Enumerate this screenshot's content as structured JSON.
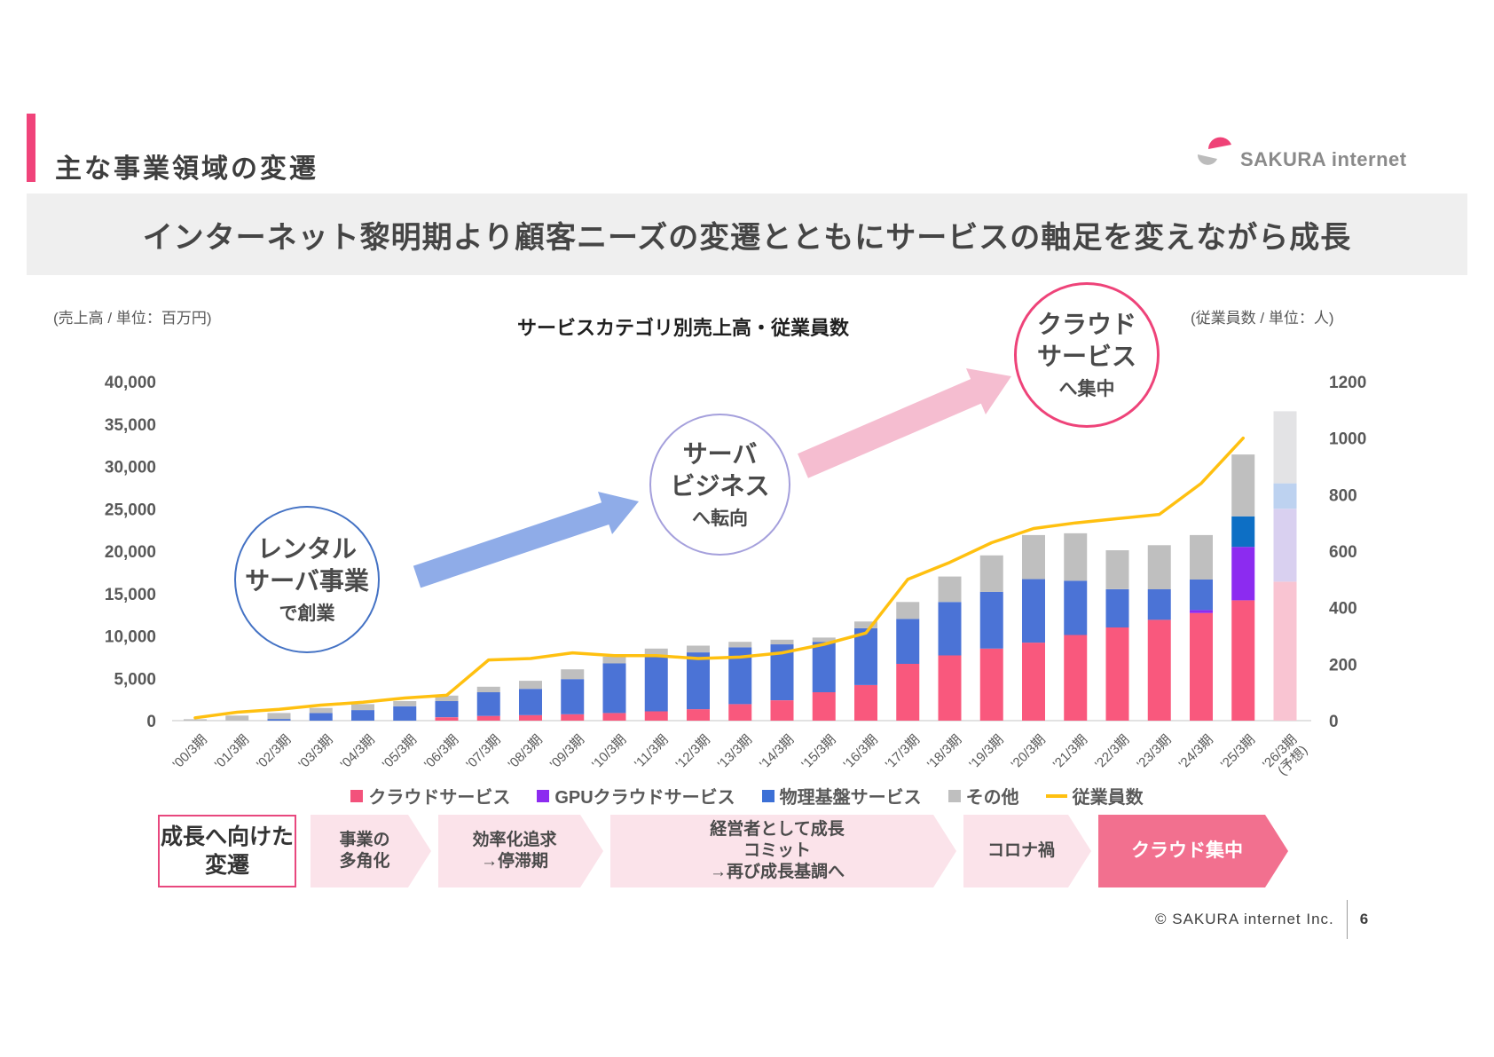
{
  "header": {
    "title": "主な事業領域の変遷"
  },
  "logo": {
    "text": "SAKURA internet"
  },
  "banner": {
    "text": "インターネット黎明期より顧客ニーズの変遷とともにサービスの軸足を変えながら成長"
  },
  "chart_header": {
    "left_unit": "(売上高 / 単位：百万円)",
    "title": "サービスカテゴリ別売上高・従業員数",
    "right_unit": "(従業員数 / 単位：人)"
  },
  "annotations": [
    {
      "main": "レンタル\nサーバ事業",
      "sub": "で創業",
      "border_color": "#4472C4"
    },
    {
      "main": "サーバ\nビジネス",
      "sub": "へ転向",
      "border_color": "#A5A0DC"
    },
    {
      "main": "クラウド\nサービス",
      "sub": "へ集中",
      "border_color": "#EE4379"
    }
  ],
  "legend": {
    "items": [
      {
        "label": "クラウドサービス",
        "color": "#F3527B",
        "type": "square"
      },
      {
        "label": "GPUクラウドサービス",
        "color": "#8C2BF0",
        "type": "square"
      },
      {
        "label": "物理基盤サービス",
        "color": "#3C70D6",
        "type": "square"
      },
      {
        "label": "その他",
        "color": "#BFBFBF",
        "type": "square"
      },
      {
        "label": "従業員数",
        "color": "#FFC010",
        "type": "line"
      }
    ]
  },
  "flow": {
    "title": "成長へ向けた\n変遷",
    "steps": [
      {
        "label": "事業の\n多角化"
      },
      {
        "label": "効率化追求\n→停滞期"
      },
      {
        "label": "経営者として成長\nコミット\n→再び成長基調へ"
      },
      {
        "label": "コロナ禍"
      },
      {
        "label": "クラウド集中"
      }
    ]
  },
  "footer": {
    "copyright": "© SAKURA internet Inc.",
    "page": "6"
  },
  "chart_data": {
    "type": "bar",
    "subtype": "stacked-bar-with-line",
    "title": "サービスカテゴリ別売上高・従業員数",
    "categories": [
      "'00/3期",
      "'01/3期",
      "'02/3期",
      "'03/3期",
      "'04/3期",
      "'05/3期",
      "'06/3期",
      "'07/3期",
      "'08/3期",
      "'09/3期",
      "'10/3期",
      "'11/3期",
      "'12/3期",
      "'13/3期",
      "'14/3期",
      "'15/3期",
      "'16/3期",
      "'17/3期",
      "'18/3期",
      "'19/3期",
      "'20/3期",
      "'21/3期",
      "'22/3期",
      "'23/3期",
      "'24/3期",
      "'25/3期",
      "'26/3期"
    ],
    "forecast_index": 26,
    "forecast_note": "(予想)",
    "y_left": {
      "label": "売上高(百万円)",
      "min": 0,
      "max": 40000,
      "step": 5000
    },
    "y_right": {
      "label": "従業員数(人)",
      "min": 0,
      "max": 1200,
      "step": 200
    },
    "grid": false,
    "legend_position": "bottom",
    "series": [
      {
        "name": "クラウドサービス",
        "color": "#F9587D",
        "forecast_color": "#F9C4D2",
        "values": [
          0,
          0,
          0,
          0,
          0,
          0,
          400,
          550,
          650,
          750,
          900,
          1100,
          1350,
          1950,
          2400,
          3350,
          4200,
          6700,
          7700,
          8500,
          9200,
          10100,
          11000,
          11900,
          12700,
          14200,
          16400
        ]
      },
      {
        "name": "GPUクラウドサービス",
        "color": "#8C2BF0",
        "forecast_color": "#D9D0F0",
        "values": [
          0,
          0,
          0,
          0,
          0,
          0,
          0,
          0,
          0,
          0,
          0,
          0,
          0,
          0,
          0,
          0,
          0,
          0,
          0,
          0,
          0,
          0,
          0,
          0,
          350,
          6300,
          8600
        ]
      },
      {
        "name": "物理基盤サービス",
        "color": "#4B73D6",
        "forecast_color": "#BDD2F0",
        "point_colors": {
          "25": "#0D6FC5"
        },
        "values": [
          0,
          0,
          200,
          900,
          1250,
          1700,
          1900,
          2800,
          3100,
          4150,
          5850,
          6400,
          6700,
          6700,
          6600,
          5950,
          6700,
          5300,
          6300,
          6700,
          7500,
          6400,
          4500,
          3600,
          3600,
          3600,
          3000
        ]
      },
      {
        "name": "その他",
        "color": "#BFBFBF",
        "forecast_color": "#E3E3E5",
        "values": [
          170,
          600,
          700,
          600,
          700,
          600,
          650,
          650,
          950,
          1150,
          800,
          1000,
          800,
          650,
          550,
          500,
          800,
          2000,
          3000,
          4300,
          5200,
          5600,
          4600,
          5200,
          5250,
          7300,
          8500
        ]
      }
    ],
    "line_series": {
      "name": "従業員数",
      "color": "#FFC010",
      "axis": "right",
      "values": [
        10,
        30,
        40,
        55,
        65,
        80,
        90,
        215,
        220,
        240,
        230,
        230,
        220,
        225,
        240,
        270,
        310,
        500,
        560,
        630,
        680,
        700,
        715,
        730,
        840,
        1000,
        null
      ]
    }
  }
}
